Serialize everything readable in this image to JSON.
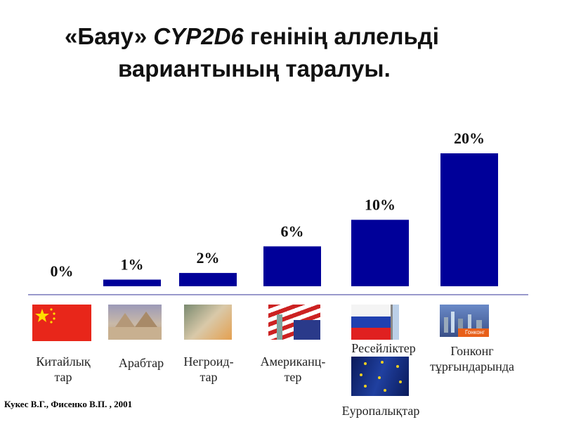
{
  "title": {
    "line1_pre": "«Баяу» ",
    "line1_gene": "CYP2D6",
    "line1_post": " генінің аллельді",
    "line2": "вариантының таралуы."
  },
  "chart_data": {
    "type": "bar",
    "categories": [
      "Китайлық тар",
      "Арабтар",
      "Негроид-тар",
      "Американц-тер",
      "Ресейліктер / Еуропалықтар",
      "Гонконг тұрғындарында"
    ],
    "values": [
      0,
      1,
      2,
      6,
      10,
      20
    ],
    "data_labels": [
      "0%",
      "1%",
      "2%",
      "6%",
      "10%",
      "20%"
    ],
    "ylim": [
      0,
      20
    ],
    "bar_color": "#000099",
    "baseline_color": "#9999cc"
  },
  "labels": {
    "china": [
      "Китайлық",
      "тар"
    ],
    "arab": "Арабтар",
    "negroid": [
      "Негроид-",
      "тар"
    ],
    "american": [
      "Американц-",
      "тер"
    ],
    "russian": "Ресейліктер",
    "european": "Еуропалықтар",
    "hongkong": [
      "Гонконг",
      "тұрғындарында"
    ],
    "hk_badge": "Гонконг"
  },
  "citation": "Кукес В.Г., Фисенко В.П. , 2001"
}
